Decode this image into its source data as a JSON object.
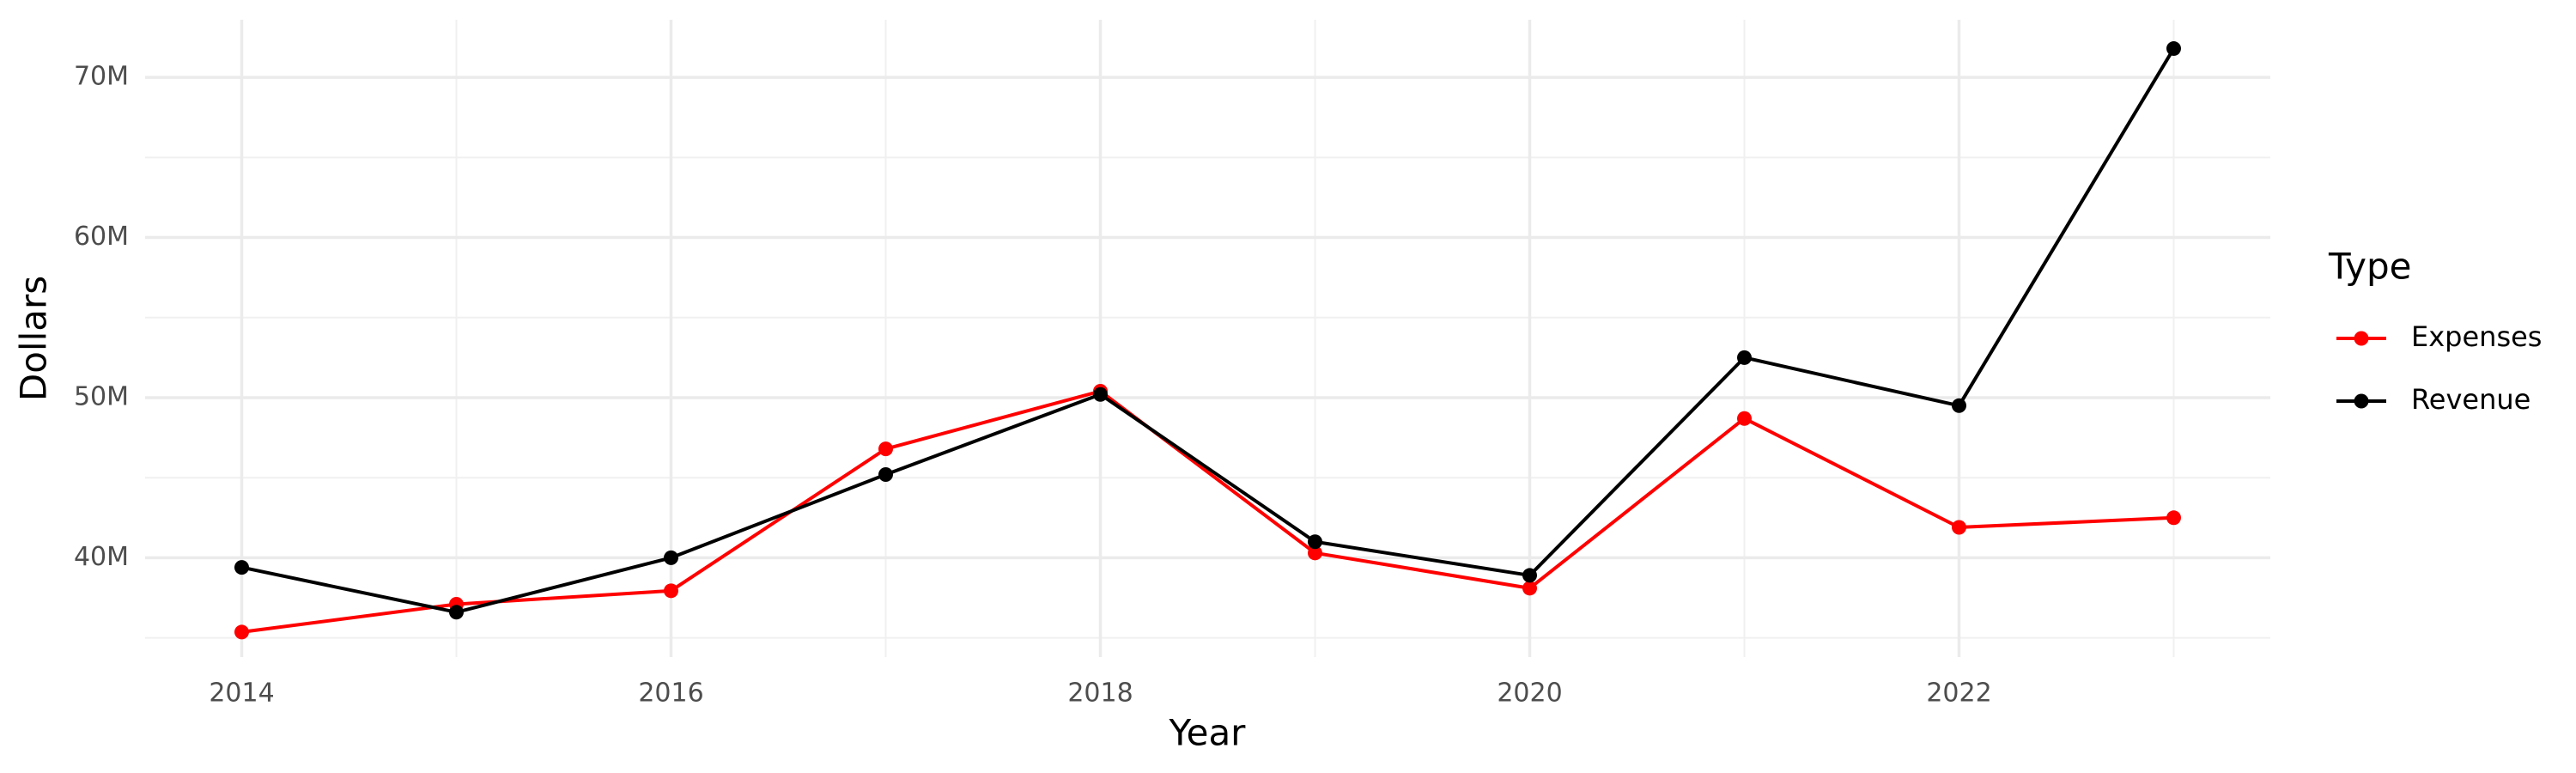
{
  "chart_data": {
    "type": "line",
    "x_label": "Year",
    "y_label": "Dollars",
    "legend_title": "Type",
    "x": [
      2014,
      2015,
      2016,
      2017,
      2018,
      2019,
      2020,
      2021,
      2022,
      2023
    ],
    "series": [
      {
        "name": "Expenses",
        "color": "#ff0000",
        "values": [
          35360000,
          37100000,
          37940000,
          46800000,
          50400000,
          40300000,
          38100000,
          48700000,
          41900000,
          42500000
        ]
      },
      {
        "name": "Revenue",
        "color": "#000000",
        "values": [
          39400000,
          36600000,
          40000000,
          45200000,
          50200000,
          41000000,
          38900000,
          52500000,
          49500000,
          71800000
        ]
      }
    ],
    "xlim": [
      2013.55,
      2023.45
    ],
    "xticks": [
      2014,
      2016,
      2018,
      2020,
      2022
    ],
    "ylim": [
      33800000,
      73600000
    ],
    "yticks": [
      {
        "value": 40000000,
        "label": "40M"
      },
      {
        "value": 50000000,
        "label": "50M"
      },
      {
        "value": 60000000,
        "label": "60M"
      },
      {
        "value": 70000000,
        "label": "70M"
      }
    ],
    "grid": true,
    "legend": "right"
  }
}
